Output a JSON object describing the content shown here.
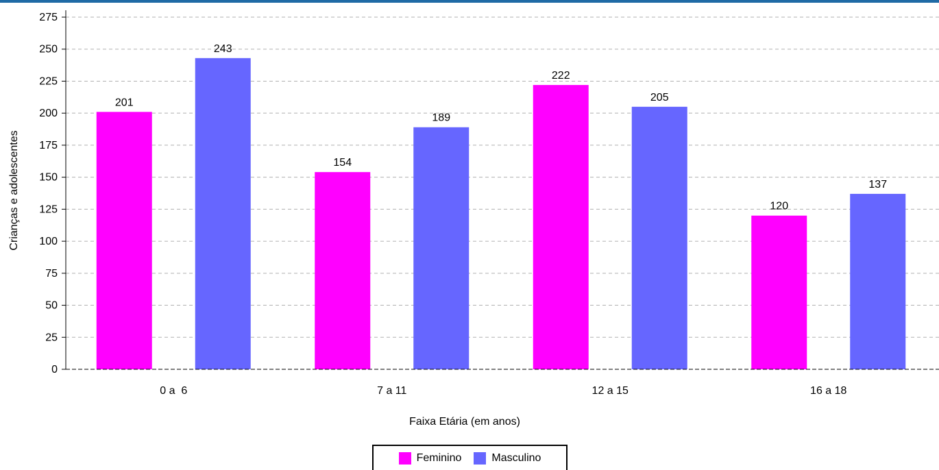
{
  "chart_data": {
    "type": "bar",
    "categories": [
      "0 a  6",
      "7 a 11",
      "12 a 15",
      "16 a 18"
    ],
    "series": [
      {
        "name": "Feminino",
        "values": [
          201,
          154,
          222,
          120
        ],
        "color": "#ff00ff"
      },
      {
        "name": "Masculino",
        "values": [
          243,
          189,
          205,
          137
        ],
        "color": "#6666ff"
      }
    ],
    "title": "",
    "xlabel": "Faixa Etária (em anos)",
    "ylabel": "Crianças e adolescentes",
    "ylim": [
      0,
      275
    ],
    "yticks": [
      0,
      25,
      50,
      75,
      100,
      125,
      150,
      175,
      200,
      225,
      250,
      275
    ],
    "grid": true,
    "legend_position": "bottom",
    "data_labels": true
  },
  "colors": {
    "header_bar": "#1f6aa5",
    "gridline": "#b0b0b0"
  }
}
